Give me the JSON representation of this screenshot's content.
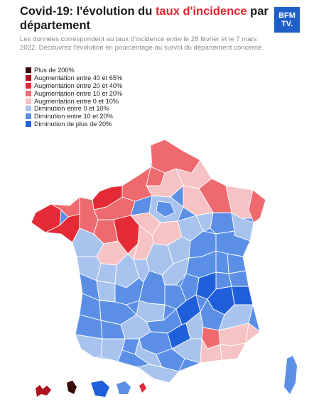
{
  "header": {
    "title_part1": "Covid-19: l'évolution du ",
    "title_highlight": "taux d'incidence",
    "title_part2": " par",
    "title_line2": "département",
    "subtitle": "Les données correspondent au taux d'incidence entre le 28 février et le 7 mars 2022. Découvrez l'évolution en pourcentage au survol du département concerné.",
    "logo_line1": "BFM",
    "logo_line2": "TV."
  },
  "colors": {
    "highlight": "#e0262f",
    "logo_bg": "#1f5fc8"
  },
  "legend": [
    {
      "label": "Plus de 200%",
      "color": "#3a0a0a"
    },
    {
      "label": "Augmentation entre 40 et 65%",
      "color": "#b01320"
    },
    {
      "label": "Augmentation entre 20 et 40%",
      "color": "#e32a35"
    },
    {
      "label": "Augmentation entre 10 et 20%",
      "color": "#ee6a6e"
    },
    {
      "label": "Augmentation entre 0 et 10%",
      "color": "#f7c2c4"
    },
    {
      "label": "Diminution entre 0 et 10%",
      "color": "#a8c3ee"
    },
    {
      "label": "Diminution entre 10 et 20%",
      "color": "#5b8fe6"
    },
    {
      "label": "Diminution de plus de 20%",
      "color": "#1f5fdc"
    }
  ],
  "map": {
    "regions_shown": [
      "mainland-france",
      "guadeloupe",
      "martinique",
      "guyane",
      "reunion",
      "mayotte",
      "corsica"
    ]
  }
}
